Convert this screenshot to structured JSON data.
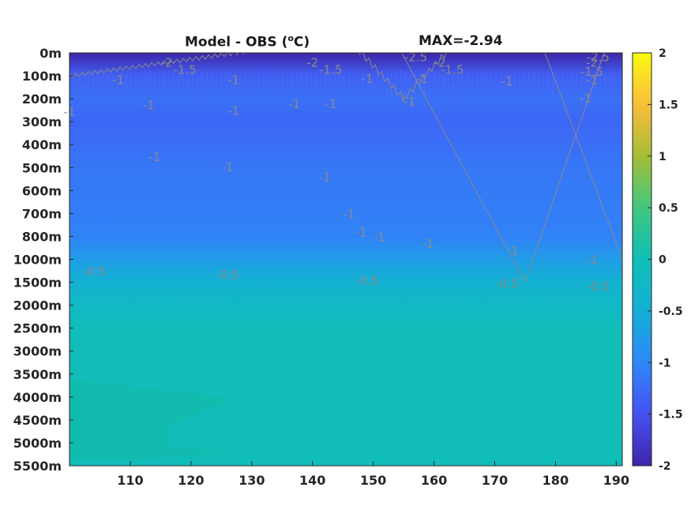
{
  "chart_data": {
    "type": "heatmap",
    "title": "Model - OBS (",
    "title_unit_sup": "o",
    "title_unit_rest": "C)",
    "max_label": "MAX=-2.94",
    "x_ticks": [
      110,
      120,
      130,
      140,
      150,
      160,
      170,
      180,
      190
    ],
    "xlim": [
      100,
      191
    ],
    "y_ticks": [
      "0m",
      "100m",
      "200m",
      "300m",
      "400m",
      "500m",
      "600m",
      "700m",
      "800m",
      "1000m",
      "1500m",
      "2000m",
      "2500m",
      "3000m",
      "3500m",
      "4000m",
      "4500m",
      "5000m",
      "5500m"
    ],
    "colorbar": {
      "ticks": [
        2,
        1.5,
        1,
        0.5,
        0,
        -0.5,
        -1,
        -1.5,
        -2
      ],
      "tick_labels": [
        "2",
        "1.5",
        "1",
        "0.5",
        "0",
        "-0.5",
        "-1",
        "-1.5",
        "-2"
      ],
      "range": [
        -2,
        2
      ],
      "colormap": "parula"
    },
    "field": {
      "depth_bands": [
        {
          "depth": "0m",
          "value": -2.0
        },
        {
          "depth": "100m",
          "value": -1.35
        },
        {
          "depth": "200m",
          "value": -1.2
        },
        {
          "depth": "300m",
          "value": -1.3
        },
        {
          "depth": "500m",
          "value": -1.15
        },
        {
          "depth": "800m",
          "value": -1.05
        },
        {
          "depth": "1000m",
          "value": -0.75
        },
        {
          "depth": "1500m",
          "value": -0.45
        },
        {
          "depth": "2000m",
          "value": -0.2
        },
        {
          "depth": "2500m",
          "value": -0.05
        },
        {
          "depth": "5500m",
          "value": -0.05
        }
      ]
    },
    "contours": [
      {
        "label": "-2",
        "points": [
          [
            100,
            "60m"
          ],
          [
            191,
            "55m"
          ]
        ],
        "label_positions": [
          [
            116,
            "40m"
          ],
          [
            140,
            "40m"
          ],
          [
            161,
            "40m"
          ],
          [
            186,
            "40m"
          ]
        ]
      },
      {
        "label": "-1.5",
        "points": [
          [
            100,
            "85m"
          ],
          [
            191,
            "80m"
          ]
        ],
        "label_positions": [
          [
            119,
            "70m"
          ],
          [
            143,
            "70m"
          ],
          [
            163,
            "70m"
          ],
          [
            186,
            "80m"
          ]
        ]
      },
      {
        "label": "-2.5",
        "points": [],
        "label_positions": [
          [
            157,
            "15m"
          ],
          [
            187,
            "15m"
          ]
        ]
      },
      {
        "label": "-1",
        "points": [
          [
            100,
            "100m"
          ],
          [
            191,
            "95m"
          ]
        ],
        "label_positions": [
          [
            108,
            "115m"
          ],
          [
            127,
            "115m"
          ],
          [
            149,
            "110m"
          ],
          [
            158,
            "110m"
          ],
          [
            172,
            "120m"
          ],
          [
            186,
            "115m"
          ]
        ]
      },
      {
        "label": "-1",
        "points": [
          [
            100,
            "250m"
          ],
          [
            112,
            "230m"
          ],
          [
            127,
            "260m"
          ],
          [
            140,
            "215m"
          ],
          [
            155,
            "200m"
          ],
          [
            170,
            "210m"
          ],
          [
            191,
            "220m"
          ]
        ],
        "label_positions": [
          [
            100,
            "255m"
          ],
          [
            113,
            "225m"
          ],
          [
            127,
            "250m"
          ],
          [
            137,
            "220m"
          ],
          [
            143,
            "220m"
          ],
          [
            156,
            "210m"
          ],
          [
            185,
            "195m"
          ]
        ]
      },
      {
        "label": "-1",
        "points": [
          [
            100,
            "410m"
          ],
          [
            112,
            "430m"
          ],
          [
            127,
            "490m"
          ],
          [
            140,
            "520m"
          ],
          [
            147,
            "580m"
          ],
          [
            148,
            "780m"
          ],
          [
            160,
            "860m"
          ],
          [
            175,
            "930m"
          ],
          [
            191,
            "1000m"
          ]
        ],
        "label_positions": [
          [
            114,
            "450m"
          ],
          [
            126,
            "495m"
          ],
          [
            142,
            "540m"
          ],
          [
            146,
            "700m"
          ],
          [
            148,
            "780m"
          ],
          [
            151,
            "800m"
          ],
          [
            159,
            "860m"
          ],
          [
            173,
            "920m"
          ],
          [
            186,
            "1000m"
          ]
        ]
      },
      {
        "label": "-0.5",
        "points": [
          [
            100,
            "1200m"
          ],
          [
            125,
            "1280m"
          ],
          [
            150,
            "1400m"
          ],
          [
            175,
            "1500m"
          ],
          [
            191,
            "1550m"
          ]
        ],
        "label_positions": [
          [
            104,
            "1250m"
          ],
          [
            126,
            "1330m"
          ],
          [
            149,
            "1450m"
          ],
          [
            172,
            "1520m"
          ],
          [
            187,
            "1580m"
          ]
        ]
      }
    ]
  }
}
